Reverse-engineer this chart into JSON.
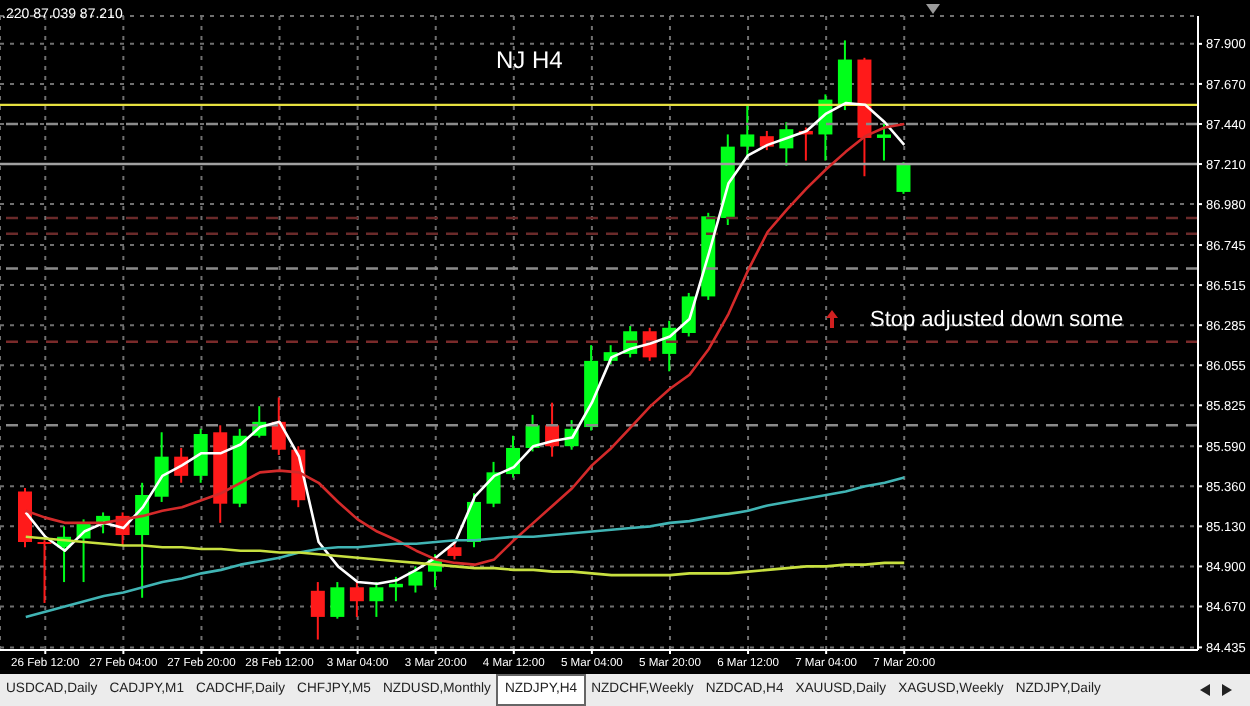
{
  "chart_data": {
    "type": "candlestick",
    "title": "NJ H4",
    "categories": [
      null,
      "26 Feb 12:00",
      null,
      null,
      null,
      "27 Feb 04:00",
      null,
      null,
      null,
      "27 Feb 20:00",
      null,
      null,
      null,
      "28 Feb 12:00",
      null,
      null,
      null,
      "3 Mar 04:00",
      null,
      null,
      null,
      "3 Mar 20:00",
      null,
      null,
      null,
      "4 Mar 12:00",
      null,
      null,
      null,
      "5 Mar 04:00",
      null,
      null,
      null,
      "5 Mar 20:00",
      null,
      null,
      null,
      "6 Mar 12:00",
      null,
      null,
      null,
      "7 Mar 04:00",
      null,
      null,
      null,
      "7 Mar 20:00"
    ],
    "ohlc": [
      [
        85.33,
        85.35,
        85.01,
        85.04
      ],
      [
        85.04,
        85.05,
        84.69,
        85.03
      ],
      [
        85.01,
        85.13,
        84.81,
        85.07
      ],
      [
        85.06,
        85.17,
        84.81,
        85.15
      ],
      [
        85.14,
        85.21,
        85.09,
        85.19
      ],
      [
        85.19,
        85.21,
        85.02,
        85.08
      ],
      [
        85.08,
        85.38,
        84.72,
        85.31
      ],
      [
        85.3,
        85.67,
        85.27,
        85.53
      ],
      [
        85.53,
        85.58,
        85.38,
        85.42
      ],
      [
        85.42,
        85.69,
        85.38,
        85.66
      ],
      [
        85.67,
        85.71,
        85.15,
        85.26
      ],
      [
        85.26,
        85.69,
        85.24,
        85.65
      ],
      [
        85.65,
        85.82,
        85.64,
        85.73
      ],
      [
        85.73,
        85.87,
        85.54,
        85.57
      ],
      [
        85.57,
        85.59,
        85.24,
        85.28
      ],
      [
        84.76,
        84.81,
        84.48,
        84.61
      ],
      [
        84.61,
        84.81,
        84.6,
        84.78
      ],
      [
        84.78,
        84.81,
        84.61,
        84.7
      ],
      [
        84.7,
        84.81,
        84.61,
        84.78
      ],
      [
        84.78,
        84.84,
        84.7,
        84.8
      ],
      [
        84.79,
        84.9,
        84.75,
        84.87
      ],
      [
        84.87,
        84.97,
        84.78,
        84.94
      ],
      [
        85.01,
        85.04,
        84.94,
        84.96
      ],
      [
        85.04,
        85.32,
        85.01,
        85.27
      ],
      [
        85.26,
        85.5,
        85.24,
        85.44
      ],
      [
        85.43,
        85.65,
        85.41,
        85.58
      ],
      [
        85.58,
        85.77,
        85.56,
        85.71
      ],
      [
        85.71,
        85.84,
        85.53,
        85.59
      ],
      [
        85.59,
        85.74,
        85.57,
        85.69
      ],
      [
        85.7,
        86.17,
        85.68,
        86.08
      ],
      [
        86.08,
        86.17,
        86.06,
        86.13
      ],
      [
        86.12,
        86.28,
        86.1,
        86.25
      ],
      [
        86.25,
        86.27,
        86.08,
        86.1
      ],
      [
        86.12,
        86.31,
        86.02,
        86.27
      ],
      [
        86.24,
        86.47,
        86.22,
        86.45
      ],
      [
        86.45,
        86.93,
        86.43,
        86.91
      ],
      [
        86.9,
        87.38,
        86.86,
        87.31
      ],
      [
        87.31,
        87.55,
        87.25,
        87.38
      ],
      [
        87.37,
        87.4,
        87.29,
        87.31
      ],
      [
        87.3,
        87.45,
        87.2,
        87.41
      ],
      [
        87.4,
        87.42,
        87.23,
        87.38
      ],
      [
        87.38,
        87.61,
        87.23,
        87.58
      ],
      [
        87.55,
        87.92,
        87.52,
        87.81
      ],
      [
        87.81,
        87.82,
        87.14,
        87.36
      ],
      [
        87.36,
        87.44,
        87.23,
        87.38
      ],
      [
        87.05,
        87.22,
        87.039,
        87.21
      ]
    ],
    "colors": [
      "#ff1a1a",
      "#ff1a1a",
      "#00ff1a",
      "#00ff1a",
      "#00ff1a",
      "#ff1a1a",
      "#00ff1a",
      "#00ff1a",
      "#ff1a1a",
      "#00ff1a",
      "#ff1a1a",
      "#00ff1a",
      "#00ff1a",
      "#ff1a1a",
      "#ff1a1a",
      "#ff1a1a",
      "#00ff1a",
      "#ff1a1a",
      "#00ff1a",
      "#00ff1a",
      "#00ff1a",
      "#00ff1a",
      "#ff1a1a",
      "#00ff1a",
      "#00ff1a",
      "#00ff1a",
      "#00ff1a",
      "#ff1a1a",
      "#00ff1a",
      "#00ff1a",
      "#00ff1a",
      "#00ff1a",
      "#ff1a1a",
      "#00ff1a",
      "#00ff1a",
      "#00ff1a",
      "#00ff1a",
      "#00ff1a",
      "#ff1a1a",
      "#00ff1a",
      "#ff1a1a",
      "#00ff1a",
      "#00ff1a",
      "#ff1a1a",
      "#00ff1a",
      "#00ff1a"
    ],
    "series": [
      {
        "type": "line",
        "color": "#ffffff",
        "values": [
          85.21,
          85.07,
          84.99,
          85.1,
          85.15,
          85.12,
          85.24,
          85.42,
          85.48,
          85.55,
          85.55,
          85.6,
          85.7,
          85.73,
          85.53,
          85.04,
          84.9,
          84.81,
          84.8,
          84.82,
          84.88,
          84.95,
          85.04,
          85.3,
          85.42,
          85.47,
          85.59,
          85.62,
          85.64,
          85.84,
          86.1,
          86.15,
          86.18,
          86.22,
          86.32,
          86.7,
          87.1,
          87.26,
          87.32,
          87.36,
          87.4,
          87.5,
          87.56,
          87.55,
          87.45,
          87.32
        ]
      },
      {
        "type": "line",
        "color": "#d42a2a",
        "values": [
          85.22,
          85.18,
          85.15,
          85.15,
          85.15,
          85.17,
          85.19,
          85.22,
          85.24,
          85.28,
          85.32,
          85.38,
          85.44,
          85.45,
          85.44,
          85.38,
          85.27,
          85.17,
          85.1,
          85.05,
          84.99,
          84.94,
          84.92,
          84.91,
          84.94,
          85.05,
          85.15,
          85.25,
          85.35,
          85.48,
          85.58,
          85.7,
          85.82,
          85.92,
          86.0,
          86.15,
          86.35,
          86.6,
          86.82,
          86.95,
          87.07,
          87.18,
          87.28,
          87.37,
          87.42,
          87.44
        ]
      },
      {
        "type": "line",
        "color": "#40b4b4",
        "values": [
          84.61,
          84.64,
          84.67,
          84.7,
          84.73,
          84.75,
          84.78,
          84.81,
          84.83,
          84.86,
          84.88,
          84.91,
          84.93,
          84.95,
          84.98,
          85.0,
          85.01,
          85.01,
          85.02,
          85.03,
          85.03,
          85.04,
          85.05,
          85.05,
          85.06,
          85.07,
          85.07,
          85.08,
          85.09,
          85.1,
          85.11,
          85.12,
          85.13,
          85.15,
          85.16,
          85.18,
          85.2,
          85.22,
          85.25,
          85.27,
          85.29,
          85.31,
          85.33,
          85.36,
          85.38,
          85.41
        ]
      },
      {
        "type": "line",
        "color": "#c8e040",
        "values": [
          85.07,
          85.06,
          85.05,
          85.04,
          85.03,
          85.02,
          85.02,
          85.01,
          85.01,
          85.0,
          85.0,
          84.99,
          84.99,
          84.98,
          84.98,
          84.97,
          84.96,
          84.95,
          84.94,
          84.93,
          84.92,
          84.91,
          84.9,
          84.89,
          84.89,
          84.88,
          84.88,
          84.87,
          84.87,
          84.86,
          84.85,
          84.85,
          84.85,
          84.85,
          84.86,
          84.86,
          84.86,
          84.87,
          84.88,
          84.89,
          84.9,
          84.9,
          84.91,
          84.91,
          84.92,
          84.92
        ]
      }
    ],
    "ylim": [
      84.42,
      88.06
    ],
    "yticks": [
      {
        "value": 84.435,
        "label": "84.435"
      },
      {
        "value": 84.67,
        "label": "84.670"
      },
      {
        "value": 84.9,
        "label": "84.900"
      },
      {
        "value": 85.13,
        "label": "85.130"
      },
      {
        "value": 85.36,
        "label": "85.360"
      },
      {
        "value": 85.59,
        "label": "85.590"
      },
      {
        "value": 85.825,
        "label": "85.825"
      },
      {
        "value": 86.055,
        "label": "86.055"
      },
      {
        "value": 86.285,
        "label": "86.285"
      },
      {
        "value": 86.515,
        "label": "86.515"
      },
      {
        "value": 86.745,
        "label": "86.745"
      },
      {
        "value": 86.98,
        "label": "86.980"
      },
      {
        "value": 87.21,
        "label": "87.210"
      },
      {
        "value": 87.44,
        "label": "87.440"
      },
      {
        "value": 87.67,
        "label": "87.670"
      },
      {
        "value": 87.9,
        "label": "87.900"
      }
    ],
    "grid": true,
    "marker": "none",
    "ref_lines": [
      {
        "axis": "y",
        "value": 87.55,
        "color": "#e6e040",
        "line_style": "solid"
      },
      {
        "axis": "y",
        "value": 87.44,
        "color": "#8a8a8a",
        "line_style": "dashed"
      },
      {
        "axis": "y",
        "value": 87.21,
        "color": "#a0a0a0",
        "line_style": "solid"
      },
      {
        "axis": "y",
        "value": 86.9,
        "color": "#6a2a2a",
        "line_style": "dashed"
      },
      {
        "axis": "y",
        "value": 86.81,
        "color": "#6a2a2a",
        "line_style": "dashed"
      },
      {
        "axis": "y",
        "value": 86.61,
        "color": "#8a8a8a",
        "line_style": "dashed"
      },
      {
        "axis": "y",
        "value": 86.19,
        "color": "#7a2a2a",
        "line_style": "dashed"
      },
      {
        "axis": "y",
        "value": 85.71,
        "color": "#8a8a8a",
        "line_style": "dashed"
      }
    ],
    "annotations": [
      ".220 87.039 87.210",
      "Stop adjusted down some",
      "USDCAD,Daily",
      "CADJPY,M1",
      "CADCHF,Daily",
      "CHFJPY,M5",
      "NZDUSD,Monthly",
      "NZDJPY,H4",
      "NZDCHF,Weekly",
      "NZDCAD,H4",
      "XAUUSD,Daily",
      "XAGUSD,Weekly",
      "NZDJPY,Daily"
    ]
  }
}
